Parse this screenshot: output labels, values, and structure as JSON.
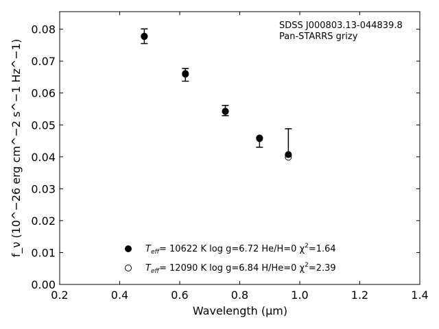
{
  "chart_data": {
    "type": "scatter",
    "xlabel": "Wavelength (μm)",
    "ylabel": "f_ν (10^−26 erg cm^−2 s^−1 Hz^−1)",
    "xlim": [
      0.2,
      1.4
    ],
    "ylim": [
      0.0,
      0.0855
    ],
    "xticks": [
      0.2,
      0.4,
      0.6,
      0.8,
      1.0,
      1.2,
      1.4
    ],
    "xtick_labels": [
      "0.2",
      "0.4",
      "0.6",
      "0.8",
      "1.0",
      "1.2",
      "1.4"
    ],
    "yticks": [
      0.0,
      0.01,
      0.02,
      0.03,
      0.04,
      0.05,
      0.06,
      0.07,
      0.08
    ],
    "ytick_labels": [
      "0.00",
      "0.01",
      "0.02",
      "0.03",
      "0.04",
      "0.05",
      "0.06",
      "0.07",
      "0.08"
    ],
    "grid": false,
    "annotation": [
      "SDSS J000803.13-044839.8",
      "Pan-STARRS grizy"
    ],
    "observed": {
      "x": [
        0.482,
        0.619,
        0.752,
        0.866,
        0.962
      ],
      "y": [
        0.0778,
        0.0657,
        0.0545,
        0.0452,
        0.041
      ],
      "yerr_low": [
        0.0023,
        0.002,
        0.0016,
        0.0022,
        0.0005
      ],
      "yerr_high": [
        0.0023,
        0.002,
        0.0016,
        0.0008,
        0.0078
      ]
    },
    "series": [
      {
        "name": "T_eff= 10622 K  log g=6.72  He/H=0  χ²=1.64",
        "marker": "filled-circle",
        "x": [
          0.482,
          0.619,
          0.752,
          0.866,
          0.962
        ],
        "y": [
          0.0778,
          0.0661,
          0.0543,
          0.0459,
          0.0407
        ]
      },
      {
        "name": "T_eff= 12090 K  log g=6.84  H/He=0  χ²=2.39",
        "marker": "open-circle",
        "x": [
          0.482,
          0.619,
          0.752,
          0.866,
          0.962
        ],
        "y": [
          0.0777,
          0.0659,
          0.0542,
          0.0457,
          0.0399
        ]
      }
    ],
    "legend": {
      "placement": "lower-center",
      "entries": [
        {
          "marker": "filled-circle",
          "teff_prefix": "T",
          "teff_sub": "eff",
          "text1": "= 10622 K  log g=6.72  He/H=0  χ",
          "sup": "2",
          "text2": "=1.64"
        },
        {
          "marker": "open-circle",
          "teff_prefix": "T",
          "teff_sub": "eff",
          "text1": "= 12090 K  log g=6.84  H/He=0  χ",
          "sup": "2",
          "text2": "=2.39"
        }
      ]
    }
  }
}
